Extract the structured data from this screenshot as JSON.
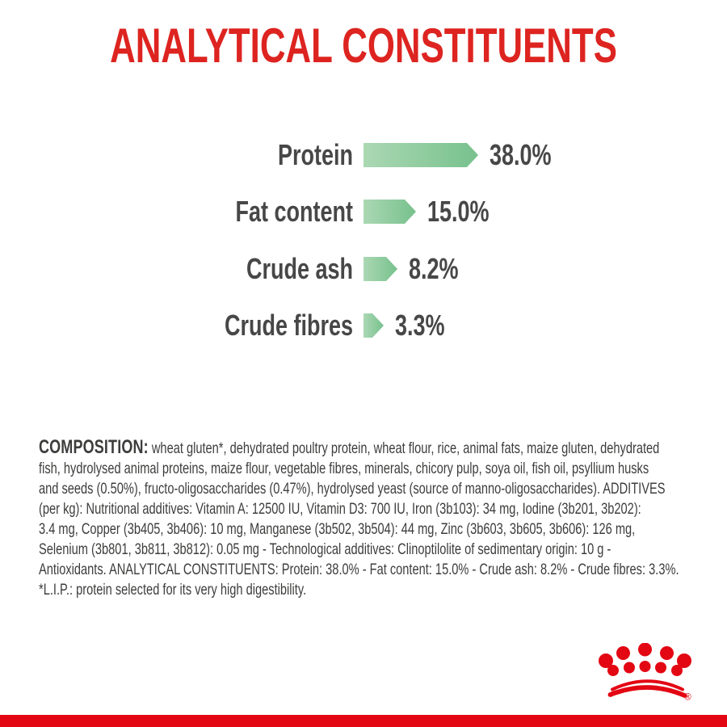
{
  "title": {
    "text": "ANALYTICAL CONSTITUENTS",
    "color": "#dd2420"
  },
  "chart_data": {
    "type": "bar",
    "orientation": "horizontal",
    "title": "ANALYTICAL CONSTITUENTS",
    "categories": [
      "Protein",
      "Fat content",
      "Crude ash",
      "Crude fibres"
    ],
    "values": [
      38.0,
      15.0,
      8.2,
      3.3
    ],
    "value_labels": [
      "38.0%",
      "15.0%",
      "8.2%",
      "3.3%"
    ],
    "unit": "%",
    "axis": "none",
    "grid": "off",
    "legend": "none",
    "bar_gradient_left": "#abd8b3",
    "bar_gradient_right": "#77c18d",
    "label_color": "#474747"
  },
  "composition": {
    "heading": "COMPOSITION:",
    "lines": [
      "wheat gluten*, dehydrated poultry protein, wheat flour, rice, animal fats, maize gluten, dehydrated",
      "fish, hydrolysed animal proteins, maize flour, vegetable fibres, minerals, chicory pulp, soya oil, fish oil, psyllium husks",
      "and seeds (0.50%), fructo-oligosaccharides (0.47%), hydrolysed yeast (source of manno-oligosaccharides). ADDITIVES",
      "(per kg): Nutritional additives: Vitamin A: 12500 IU, Vitamin D3: 700 IU, Iron (3b103): 34 mg, Iodine (3b201, 3b202):",
      "3.4 mg, Copper (3b405, 3b406): 10 mg, Manganese (3b502, 3b504): 44 mg, Zinc (3b603, 3b605, 3b606): 126 mg,",
      "Selenium (3b801, 3b811, 3b812): 0.05 mg - Technological additives: Clinoptilolite of sedimentary origin: 10 g -",
      "Antioxidants. ANALYTICAL CONSTITUENTS: Protein: 38.0% - Fat content: 15.0% - Crude ash: 8.2% - Crude fibres: 3.3%.",
      "*L.I.P.: protein selected for its very high digestibility."
    ]
  },
  "logo": {
    "name": "royal-canin-crown",
    "color": "#e30613",
    "registered_mark": "®"
  },
  "footer": {
    "band_color": "#e30613"
  }
}
